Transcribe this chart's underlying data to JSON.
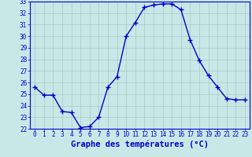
{
  "hours": [
    0,
    1,
    2,
    3,
    4,
    5,
    6,
    7,
    8,
    9,
    10,
    11,
    12,
    13,
    14,
    15,
    16,
    17,
    18,
    19,
    20,
    21,
    22,
    23
  ],
  "temps": [
    25.6,
    24.9,
    24.9,
    23.5,
    23.4,
    22.1,
    22.2,
    23.0,
    25.6,
    26.5,
    30.0,
    31.2,
    32.5,
    32.7,
    32.8,
    32.8,
    32.3,
    29.7,
    27.9,
    26.6,
    25.6,
    24.6,
    24.5,
    24.5
  ],
  "line_color": "#0000cc",
  "marker": "+",
  "marker_size": 4,
  "marker_lw": 1.0,
  "line_width": 1.0,
  "bg_color": "#c8e8e8",
  "grid_color": "#a8c8c8",
  "axis_color": "#0000cc",
  "xlabel": "Graphe des températures (°C)",
  "ylim": [
    22,
    33
  ],
  "yticks": [
    22,
    23,
    24,
    25,
    26,
    27,
    28,
    29,
    30,
    31,
    32,
    33
  ],
  "xticks": [
    0,
    1,
    2,
    3,
    4,
    5,
    6,
    7,
    8,
    9,
    10,
    11,
    12,
    13,
    14,
    15,
    16,
    17,
    18,
    19,
    20,
    21,
    22,
    23
  ],
  "tick_fontsize": 5.5,
  "xlabel_fontsize": 7.5,
  "xlabel_fontweight": "bold"
}
